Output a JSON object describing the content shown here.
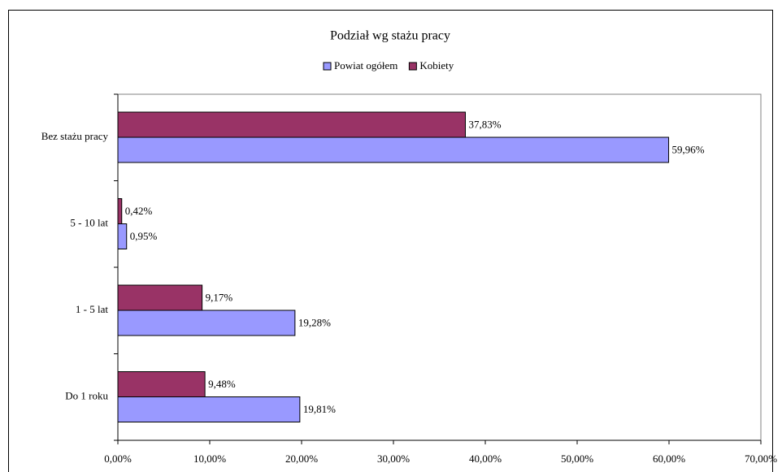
{
  "chart_data": {
    "type": "barh",
    "title": "Podział wg stażu pracy",
    "categories": [
      "Bez stażu pracy",
      "5 - 10 lat",
      "1 - 5 lat",
      "Do 1 roku"
    ],
    "series": [
      {
        "name": "Powiat ogółem",
        "color": "#9999ff",
        "values": [
          59.96,
          0.95,
          19.28,
          19.81
        ],
        "value_labels": [
          "59,96%",
          "0,95%",
          "19,28%",
          "19,81%"
        ]
      },
      {
        "name": "Kobiety",
        "color": "#993366",
        "values": [
          37.83,
          0.42,
          9.17,
          9.48
        ],
        "value_labels": [
          "37,83%",
          "0,42%",
          "9,17%",
          "9,48%"
        ]
      }
    ],
    "xlim": [
      0,
      70
    ],
    "xticks": [
      {
        "value": 0,
        "label": "0,00%"
      },
      {
        "value": 10,
        "label": "10,00%"
      },
      {
        "value": 20,
        "label": "20,00%"
      },
      {
        "value": 30,
        "label": "30,00%"
      },
      {
        "value": 40,
        "label": "40,00%"
      },
      {
        "value": 50,
        "label": "50,00%"
      },
      {
        "value": 60,
        "label": "60,00%"
      },
      {
        "value": 70,
        "label": "70,00%"
      }
    ],
    "legend": "top"
  }
}
